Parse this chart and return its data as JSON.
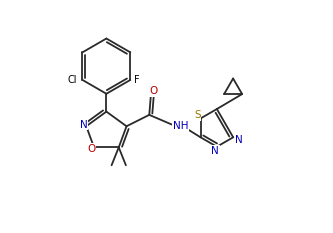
{
  "bg_color": "#ffffff",
  "line_color": "#2a2a2a",
  "text_color": "#000000",
  "atom_colors": {
    "N": "#0000bb",
    "O": "#bb0000",
    "S": "#997700",
    "Cl": "#000000",
    "F": "#000000"
  },
  "figsize": [
    3.33,
    2.33
  ],
  "dpi": 100
}
